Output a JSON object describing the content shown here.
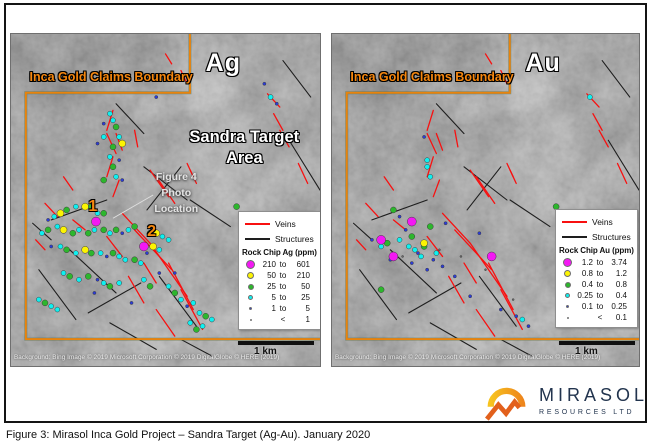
{
  "figure": {
    "caption": "Figure 3: Mirasol Inca Gold Project – Sandra Target (Ag-Au). January 2020"
  },
  "logo": {
    "name": "MIRASOL",
    "subtitle": "RESOURCES LTD"
  },
  "colors": {
    "boundary": "#E8830D",
    "vein": "#F81010",
    "structure": "#1E1E1E"
  },
  "geology": {
    "boundary": [
      [
        57.9,
        0
      ],
      [
        57.9,
        17.7
      ],
      [
        4.8,
        17.7
      ],
      [
        4.8,
        91.9
      ],
      [
        100,
        91.9
      ]
    ],
    "veins": [
      [
        33,
        23,
        31,
        29
      ],
      [
        31,
        30,
        34,
        36
      ],
      [
        34,
        30,
        36,
        35
      ],
      [
        33,
        37,
        31,
        43
      ],
      [
        35,
        44,
        33,
        49
      ],
      [
        40,
        29,
        41,
        34
      ],
      [
        45,
        41,
        51,
        49
      ],
      [
        47,
        43,
        53,
        51
      ],
      [
        36,
        54,
        45,
        63
      ],
      [
        40,
        59,
        52,
        71
      ],
      [
        45,
        63,
        57,
        79
      ],
      [
        51,
        69,
        59,
        83
      ],
      [
        55,
        77,
        62,
        89
      ],
      [
        43,
        69,
        47,
        75
      ],
      [
        31,
        61,
        36,
        67
      ],
      [
        38,
        73,
        43,
        81
      ],
      [
        47,
        83,
        53,
        91
      ],
      [
        17,
        43,
        20,
        47
      ],
      [
        11,
        51,
        15,
        55
      ],
      [
        20,
        56,
        24,
        59
      ],
      [
        8,
        62,
        11,
        65
      ],
      [
        55,
        11,
        57,
        15
      ],
      [
        50,
        6,
        52,
        9
      ],
      [
        83,
        18,
        87,
        22
      ],
      [
        85,
        24,
        88,
        29
      ],
      [
        57,
        39,
        59,
        43
      ],
      [
        58,
        41,
        60,
        45
      ],
      [
        93,
        39,
        96,
        45
      ],
      [
        87,
        29,
        90,
        34
      ]
    ],
    "structures": [
      [
        34,
        21,
        43,
        30
      ],
      [
        43,
        40,
        57,
        50
      ],
      [
        55,
        40,
        44,
        53
      ],
      [
        13,
        56,
        31,
        50
      ],
      [
        7,
        57,
        13,
        62
      ],
      [
        19,
        65,
        34,
        78
      ],
      [
        9,
        71,
        21,
        86
      ],
      [
        25,
        84,
        42,
        75
      ],
      [
        32,
        87,
        47,
        95
      ],
      [
        48,
        73,
        60,
        88
      ],
      [
        58,
        50,
        71,
        58
      ],
      [
        88,
        8,
        97,
        19
      ],
      [
        90,
        32,
        100,
        47
      ],
      [
        55,
        92,
        65,
        97
      ]
    ]
  },
  "panels": [
    {
      "id": "ag",
      "title": "Ag",
      "boundary_label": "Inca Gold Claims Boundary",
      "area_label": [
        "Sandra Target",
        "Area"
      ],
      "photo_label": [
        "Figure 4",
        "Photo",
        "Location"
      ],
      "leader": [
        33,
        55.5,
        46,
        48.5
      ],
      "markers": [
        {
          "text": "1",
          "x": 26.5,
          "y": 52
        },
        {
          "text": "2",
          "x": 45.5,
          "y": 59.5
        }
      ],
      "legend": {
        "veins_label": "Veins",
        "structures_label": "Structures",
        "title": "Rock Chip Ag (ppm)",
        "classes": [
          {
            "color": "#F318F3",
            "d": 9,
            "lo": "210",
            "sep": "to",
            "hi": "601"
          },
          {
            "color": "#FCF403",
            "d": 7,
            "lo": "50",
            "sep": "to",
            "hi": "210"
          },
          {
            "color": "#2DB62D",
            "d": 6,
            "lo": "25",
            "sep": "to",
            "hi": "50"
          },
          {
            "color": "#0FF0F0",
            "d": 5,
            "lo": "5",
            "sep": "to",
            "hi": "25"
          },
          {
            "color": "#2B3BD6",
            "d": 3.2,
            "lo": "1",
            "sep": "to",
            "hi": "5"
          },
          {
            "color": "#6b6b6b",
            "d": 2,
            "lo": "",
            "sep": "<",
            "hi": "1"
          }
        ]
      },
      "scale_label": "1 km",
      "attribution": "Background: Bing Image © 2019 Microsoft Corporation © 2019 DigitalGlobe © HERE (2019)",
      "samples": [
        [
          32,
          24,
          3
        ],
        [
          33,
          26,
          3
        ],
        [
          34,
          28,
          2
        ],
        [
          30,
          31,
          3
        ],
        [
          35,
          31,
          3
        ],
        [
          36,
          33,
          1
        ],
        [
          33,
          34,
          2
        ],
        [
          32,
          37,
          3
        ],
        [
          33,
          40,
          2
        ],
        [
          34,
          43,
          3
        ],
        [
          30,
          44,
          2
        ],
        [
          36,
          44,
          4
        ],
        [
          28,
          33,
          4
        ],
        [
          30,
          27,
          4
        ],
        [
          35,
          38,
          4
        ],
        [
          84,
          19,
          3
        ],
        [
          82,
          15,
          4
        ],
        [
          86,
          21,
          4
        ],
        [
          47,
          19,
          4
        ],
        [
          73,
          52,
          2
        ],
        [
          14,
          55,
          3
        ],
        [
          16,
          54,
          1
        ],
        [
          18,
          53,
          2
        ],
        [
          21,
          52,
          3
        ],
        [
          24,
          52,
          1
        ],
        [
          28,
          54,
          3
        ],
        [
          30,
          54,
          2
        ],
        [
          12,
          56,
          4
        ],
        [
          26,
          52,
          2
        ],
        [
          10,
          60,
          3
        ],
        [
          12,
          59,
          2
        ],
        [
          15,
          58,
          3
        ],
        [
          17,
          59,
          1
        ],
        [
          20,
          60,
          2
        ],
        [
          22,
          59,
          3
        ],
        [
          25,
          60,
          2
        ],
        [
          27,
          59,
          3
        ],
        [
          30,
          59,
          2
        ],
        [
          32,
          60,
          3
        ],
        [
          34,
          59,
          2
        ],
        [
          36,
          60,
          4
        ],
        [
          38,
          59,
          3
        ],
        [
          40,
          58,
          2
        ],
        [
          45,
          60,
          2
        ],
        [
          47,
          60,
          1
        ],
        [
          49,
          61,
          3
        ],
        [
          51,
          62,
          3
        ],
        [
          13,
          64,
          4
        ],
        [
          16,
          64,
          3
        ],
        [
          18,
          65,
          2
        ],
        [
          21,
          66,
          3
        ],
        [
          24,
          65,
          1
        ],
        [
          26,
          66,
          2
        ],
        [
          29,
          66,
          3
        ],
        [
          31,
          67,
          4
        ],
        [
          33,
          66,
          2
        ],
        [
          35,
          67,
          3
        ],
        [
          37,
          68,
          3
        ],
        [
          40,
          68,
          2
        ],
        [
          42,
          69,
          3
        ],
        [
          44,
          66,
          4
        ],
        [
          46,
          64,
          1
        ],
        [
          48,
          65,
          3
        ],
        [
          17,
          72,
          3
        ],
        [
          19,
          73,
          2
        ],
        [
          22,
          74,
          3
        ],
        [
          25,
          73,
          2
        ],
        [
          28,
          74,
          4
        ],
        [
          30,
          75,
          3
        ],
        [
          32,
          76,
          2
        ],
        [
          35,
          75,
          3
        ],
        [
          43,
          74,
          3
        ],
        [
          45,
          76,
          2
        ],
        [
          48,
          72,
          4
        ],
        [
          9,
          80,
          3
        ],
        [
          11,
          81,
          2
        ],
        [
          13,
          82,
          3
        ],
        [
          15,
          83,
          3
        ],
        [
          27,
          78,
          4
        ],
        [
          39,
          81,
          4
        ],
        [
          51,
          76,
          3
        ],
        [
          53,
          78,
          2
        ],
        [
          55,
          80,
          3
        ],
        [
          57,
          82,
          4
        ],
        [
          59,
          81,
          3
        ],
        [
          61,
          84,
          3
        ],
        [
          63,
          85,
          2
        ],
        [
          65,
          86,
          3
        ],
        [
          62,
          88,
          3
        ],
        [
          53,
          72,
          4
        ],
        [
          58,
          87,
          3
        ],
        [
          60,
          89,
          2
        ],
        [
          27.5,
          56.5,
          0
        ],
        [
          43,
          64,
          0
        ]
      ]
    },
    {
      "id": "au",
      "title": "Au",
      "boundary_label": "Inca Gold Claims Boundary",
      "legend": {
        "veins_label": "Veins",
        "structures_label": "Structures",
        "title": "Rock Chip Au (ppm)",
        "classes": [
          {
            "color": "#F318F3",
            "d": 9,
            "lo": "1.2",
            "sep": "to",
            "hi": "3.74"
          },
          {
            "color": "#FCF403",
            "d": 7,
            "lo": "0.8",
            "sep": "to",
            "hi": "1.2"
          },
          {
            "color": "#2DB62D",
            "d": 6,
            "lo": "0.4",
            "sep": "to",
            "hi": "0.8"
          },
          {
            "color": "#0FF0F0",
            "d": 5,
            "lo": "0.25",
            "sep": "to",
            "hi": "0.4"
          },
          {
            "color": "#2B3BD6",
            "d": 3.2,
            "lo": "0.1",
            "sep": "to",
            "hi": "0.25"
          },
          {
            "color": "#6b6b6b",
            "d": 2,
            "lo": "",
            "sep": "<",
            "hi": "0.1"
          }
        ]
      },
      "scale_label": "1 km",
      "attribution": "Background: Bing Image © 2019 Microsoft Corporation © 2019 DigitalGlobe © HERE (2019)",
      "samples": [
        [
          31,
          38,
          3
        ],
        [
          31,
          40,
          3
        ],
        [
          32,
          43,
          3
        ],
        [
          30,
          31,
          4
        ],
        [
          73,
          52,
          2
        ],
        [
          84,
          19,
          3
        ],
        [
          20,
          53,
          2
        ],
        [
          32,
          58,
          2
        ],
        [
          26,
          61,
          2
        ],
        [
          18,
          63,
          2
        ],
        [
          30,
          64,
          2
        ],
        [
          16,
          77,
          2
        ],
        [
          30,
          63,
          1
        ],
        [
          16,
          64,
          3
        ],
        [
          25,
          64,
          3
        ],
        [
          27,
          65,
          3
        ],
        [
          29,
          67,
          3
        ],
        [
          34,
          66,
          3
        ],
        [
          22,
          62,
          3
        ],
        [
          62,
          86,
          3
        ],
        [
          22,
          55,
          4
        ],
        [
          24,
          59,
          4
        ],
        [
          28,
          66,
          4
        ],
        [
          33,
          68,
          4
        ],
        [
          19,
          68,
          4
        ],
        [
          36,
          70,
          4
        ],
        [
          40,
          73,
          4
        ],
        [
          45,
          79,
          4
        ],
        [
          55,
          83,
          4
        ],
        [
          60,
          85,
          4
        ],
        [
          48,
          60,
          4
        ],
        [
          37,
          57,
          4
        ],
        [
          13,
          62,
          4
        ],
        [
          26,
          69,
          4
        ],
        [
          31,
          71,
          4
        ],
        [
          64,
          88,
          4
        ],
        [
          35,
          65,
          5
        ],
        [
          42,
          67,
          5
        ],
        [
          50,
          71,
          5
        ],
        [
          23,
          67,
          5
        ],
        [
          59,
          80,
          5
        ],
        [
          26,
          56.5,
          0
        ],
        [
          16,
          62,
          0
        ],
        [
          20,
          67,
          0
        ],
        [
          52,
          67,
          0
        ]
      ]
    }
  ]
}
